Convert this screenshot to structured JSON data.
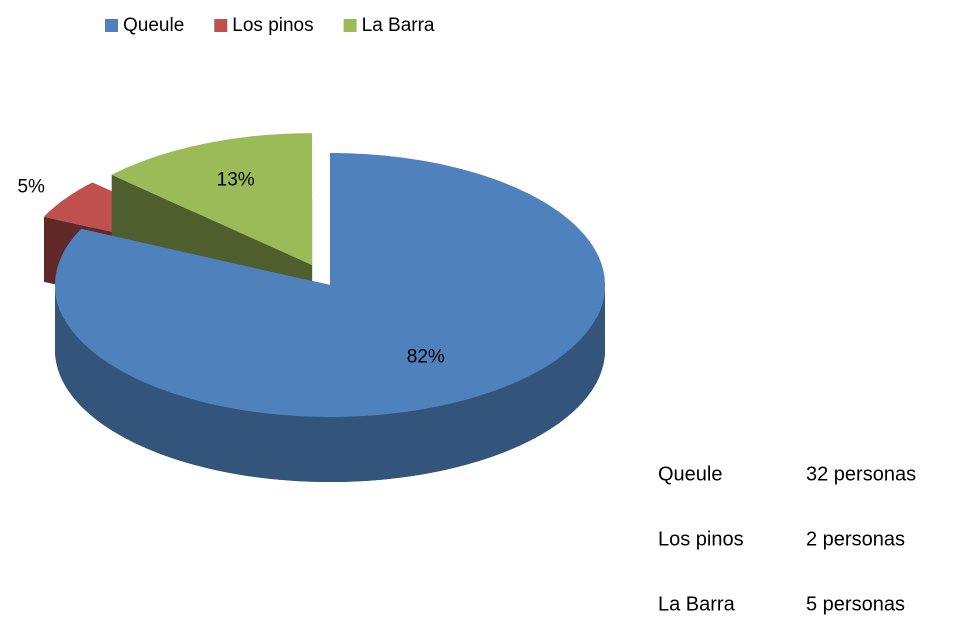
{
  "chart_data": {
    "type": "pie3d",
    "categories": [
      "Queule",
      "Los pinos",
      "La Barra"
    ],
    "values": [
      82,
      5,
      13
    ],
    "value_labels": [
      "82%",
      "5%",
      "13%"
    ],
    "colors": [
      "#4f81bd",
      "#c0504d",
      "#9bbb59"
    ],
    "legend": "top"
  },
  "table": {
    "rows": [
      [
        "Queule",
        "32 personas"
      ],
      [
        "Los pinos",
        "2 personas"
      ],
      [
        "La Barra",
        "5 personas"
      ]
    ]
  }
}
